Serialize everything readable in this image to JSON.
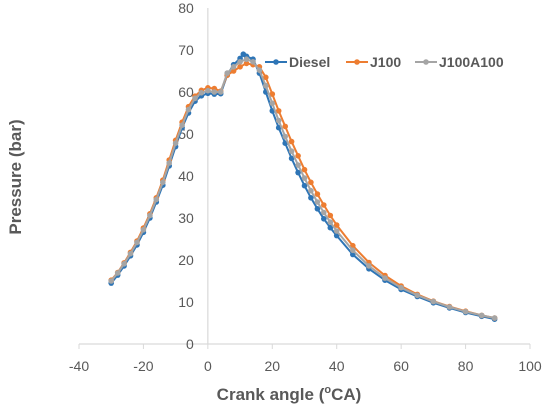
{
  "chart_data": {
    "type": "line",
    "xlabel": "Crank angle (",
    "xlabel_sup": "o",
    "xlabel_tail": "CA)",
    "ylabel": "Pressure (bar)",
    "xlim": [
      -40,
      100
    ],
    "ylim": [
      0,
      80
    ],
    "xticks": [
      -40,
      -20,
      0,
      20,
      40,
      60,
      80,
      100
    ],
    "yticks": [
      0,
      10,
      20,
      30,
      40,
      50,
      60,
      70,
      80
    ],
    "grid": false,
    "legend_position": "top-right",
    "series": [
      {
        "name": "Diesel",
        "color": "#2E75B6",
        "x": [
          -30,
          -28,
          -26,
          -24,
          -22,
          -20,
          -18,
          -16,
          -14,
          -12,
          -10,
          -8,
          -6,
          -4,
          -2,
          0,
          2,
          4,
          6,
          8,
          10,
          11,
          12,
          14,
          16,
          18,
          20,
          22,
          24,
          26,
          28,
          30,
          32,
          34,
          36,
          38,
          40,
          45,
          50,
          55,
          60,
          65,
          70,
          75,
          80,
          85,
          89
        ],
        "y": [
          14.5,
          16.4,
          18.6,
          21.0,
          23.6,
          26.6,
          30.0,
          33.8,
          37.8,
          42.4,
          47.0,
          51.5,
          55.0,
          57.8,
          59.1,
          59.7,
          59.5,
          59.6,
          64.0,
          66.5,
          68.0,
          69.0,
          68.5,
          67.8,
          64.5,
          60.0,
          55.5,
          51.5,
          47.8,
          44.2,
          40.8,
          37.7,
          34.8,
          32.2,
          29.8,
          27.7,
          25.8,
          21.3,
          17.9,
          15.2,
          13.0,
          11.3,
          9.8,
          8.6,
          7.5,
          6.6,
          5.9
        ]
      },
      {
        "name": "J100",
        "color": "#ED7D31",
        "x": [
          -30,
          -28,
          -26,
          -24,
          -22,
          -20,
          -18,
          -16,
          -14,
          -12,
          -10,
          -8,
          -6,
          -4,
          -2,
          0,
          2,
          4,
          6,
          8,
          10,
          12,
          14,
          16,
          18,
          20,
          22,
          24,
          26,
          28,
          30,
          32,
          34,
          36,
          38,
          40,
          45,
          50,
          55,
          60,
          65,
          70,
          75,
          80,
          85,
          89
        ],
        "y": [
          15.2,
          17.0,
          19.3,
          21.8,
          24.5,
          27.6,
          31.0,
          34.8,
          39.0,
          43.8,
          48.5,
          52.8,
          56.5,
          59.0,
          60.4,
          61.0,
          60.8,
          60.2,
          64.0,
          65.0,
          66.0,
          66.8,
          66.5,
          66.0,
          63.5,
          59.5,
          55.5,
          51.8,
          48.2,
          44.8,
          41.5,
          38.5,
          35.7,
          33.1,
          30.6,
          28.3,
          23.4,
          19.4,
          16.3,
          13.8,
          11.8,
          10.2,
          8.9,
          7.8,
          6.8,
          6.2
        ]
      },
      {
        "name": "J100A100",
        "color": "#A5A5A5",
        "x": [
          -30,
          -28,
          -26,
          -24,
          -22,
          -20,
          -18,
          -16,
          -14,
          -12,
          -10,
          -8,
          -6,
          -4,
          -2,
          0,
          2,
          4,
          6,
          8,
          10,
          12,
          14,
          16,
          18,
          20,
          22,
          24,
          26,
          28,
          30,
          32,
          34,
          36,
          38,
          40,
          45,
          50,
          55,
          60,
          65,
          70,
          75,
          80,
          85,
          89
        ],
        "y": [
          15.0,
          16.9,
          19.1,
          21.5,
          24.2,
          27.2,
          30.6,
          34.4,
          38.5,
          43.1,
          47.8,
          52.1,
          55.8,
          58.5,
          59.8,
          60.3,
          60.0,
          60.0,
          64.5,
          66.0,
          67.2,
          67.8,
          67.2,
          65.2,
          61.5,
          57.3,
          53.2,
          49.4,
          45.9,
          42.6,
          39.5,
          36.5,
          33.8,
          31.3,
          29.0,
          26.9,
          22.3,
          18.6,
          15.7,
          13.4,
          11.6,
          10.1,
          8.8,
          7.7,
          6.8,
          6.2
        ]
      }
    ]
  }
}
